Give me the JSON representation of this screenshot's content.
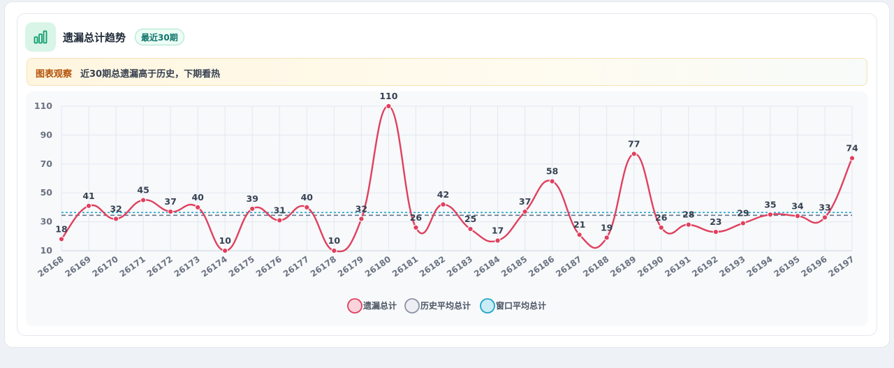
{
  "header": {
    "title": "遗漏总计趋势",
    "badge": "最近30期",
    "icon": "bar-chart-icon"
  },
  "notice": {
    "tag": "图表观察",
    "text": "近30期总遗漏高于历史，下期看热"
  },
  "colors": {
    "series": "#e0405e",
    "history_avg": "#64748b",
    "window_avg": "#1ea5c8",
    "accent": "#0f9f6e"
  },
  "chart_data": {
    "type": "line",
    "categories": [
      "26168",
      "26169",
      "26170",
      "26171",
      "26172",
      "26173",
      "26174",
      "26175",
      "26176",
      "26177",
      "26178",
      "26179",
      "26180",
      "26181",
      "26182",
      "26183",
      "26184",
      "26185",
      "26186",
      "26187",
      "26188",
      "26189",
      "26190",
      "26191",
      "26192",
      "26193",
      "26194",
      "26195",
      "26196",
      "26197"
    ],
    "series": [
      {
        "name": "遗漏总计",
        "values": [
          18,
          41,
          32,
          45,
          37,
          40,
          10,
          39,
          31,
          40,
          10,
          32,
          110,
          26,
          42,
          25,
          17,
          37,
          58,
          21,
          19,
          77,
          26,
          28,
          23,
          29,
          35,
          34,
          33,
          74
        ]
      }
    ],
    "reference_lines": [
      {
        "name": "历史平均总计",
        "value": 34.5,
        "style": "dashed"
      },
      {
        "name": "窗口平均总计",
        "value": 36.4,
        "style": "dotted"
      }
    ],
    "yticks": [
      "10",
      "30",
      "50",
      "70",
      "90",
      "110"
    ],
    "ylim": [
      10,
      110
    ],
    "grid": true,
    "legend": "bottom-center",
    "data_labels": true
  }
}
